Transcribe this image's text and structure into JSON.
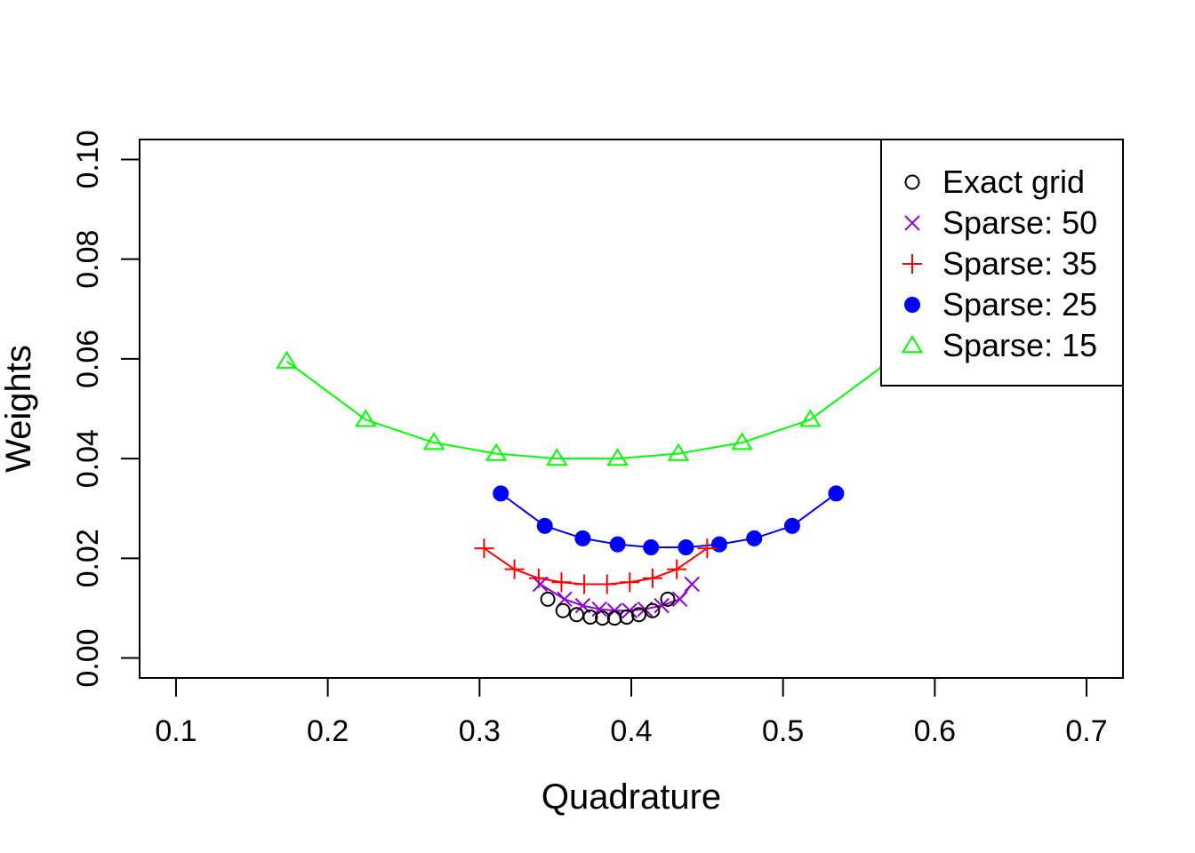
{
  "chart_data": {
    "type": "line",
    "title": "",
    "xlabel": "Quadrature",
    "ylabel": "Weights",
    "xlim": [
      0.076,
      0.724
    ],
    "ylim": [
      -0.004,
      0.104
    ],
    "xticks": [
      0.1,
      0.2,
      0.3,
      0.4,
      0.5,
      0.6,
      0.7
    ],
    "xtick_labels": [
      "0.1",
      "0.2",
      "0.3",
      "0.4",
      "0.5",
      "0.6",
      "0.7"
    ],
    "yticks": [
      0.0,
      0.02,
      0.04,
      0.06,
      0.08,
      0.1
    ],
    "ytick_labels": [
      "0.00",
      "0.02",
      "0.04",
      "0.06",
      "0.08",
      "0.10"
    ],
    "grid": false,
    "legend_position": "top-right",
    "series": [
      {
        "name": "Exact grid",
        "color": "#000000",
        "marker": "open-circle",
        "line": false,
        "x": [
          0.345,
          0.355,
          0.364,
          0.373,
          0.381,
          0.389,
          0.397,
          0.405,
          0.414,
          0.424
        ],
        "y": [
          0.0118,
          0.0095,
          0.0087,
          0.0082,
          0.008,
          0.008,
          0.0082,
          0.0087,
          0.0095,
          0.0118
        ]
      },
      {
        "name": "Sparse: 50",
        "color": "#9400D3",
        "marker": "x",
        "line": true,
        "x": [
          0.34,
          0.356,
          0.368,
          0.379,
          0.389,
          0.399,
          0.409,
          0.42,
          0.432,
          0.44
        ],
        "y": [
          0.0148,
          0.0118,
          0.0105,
          0.0098,
          0.0095,
          0.0095,
          0.0098,
          0.0105,
          0.0118,
          0.0148
        ]
      },
      {
        "name": "Sparse: 35",
        "color": "#FF0000",
        "marker": "plus",
        "line": true,
        "x": [
          0.303,
          0.323,
          0.339,
          0.354,
          0.369,
          0.384,
          0.399,
          0.414,
          0.43,
          0.45
        ],
        "y": [
          0.022,
          0.0178,
          0.016,
          0.0152,
          0.0148,
          0.0148,
          0.0152,
          0.016,
          0.0178,
          0.022
        ]
      },
      {
        "name": "Sparse: 25",
        "color": "#0000FF",
        "marker": "filled-circle",
        "line": true,
        "x": [
          0.314,
          0.343,
          0.368,
          0.391,
          0.413,
          0.436,
          0.458,
          0.481,
          0.506,
          0.535
        ],
        "y": [
          0.033,
          0.0265,
          0.024,
          0.0228,
          0.0222,
          0.0222,
          0.0228,
          0.024,
          0.0265,
          0.033
        ]
      },
      {
        "name": "Sparse: 15",
        "color": "#00FF00",
        "marker": "open-triangle",
        "line": true,
        "x": [
          0.173,
          0.225,
          0.27,
          0.311,
          0.351,
          0.391,
          0.431,
          0.473,
          0.518,
          0.57
        ],
        "y": [
          0.0595,
          0.0478,
          0.0432,
          0.041,
          0.04,
          0.04,
          0.041,
          0.0432,
          0.0478,
          0.0595
        ]
      }
    ]
  }
}
